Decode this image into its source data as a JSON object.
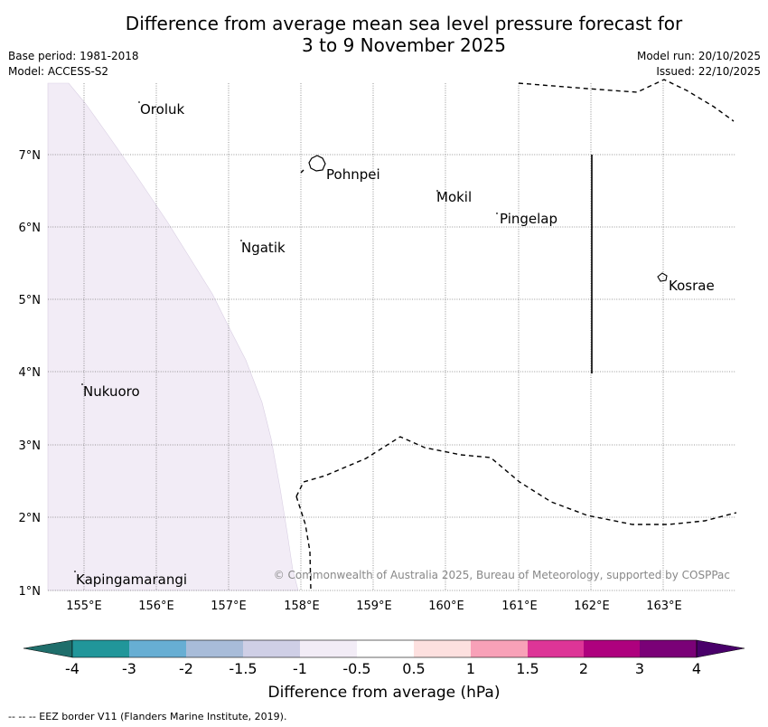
{
  "title_line1": "Difference from average mean sea level pressure forecast for",
  "title_line2": "3 to 9 November 2025",
  "base_period": "Base period: 1981-2018",
  "model": "Model: ACCESS-S2",
  "model_run": "Model run: 20/10/2025",
  "issued": "Issued: 22/10/2025",
  "copyright": "© Commonwealth of Australia 2025, Bureau of Meteorology, supported by COSPPac",
  "colorbar_label": "Difference from average (hPa)",
  "footer": "--  --  -- EEZ border V11 (Flanders Marine Institute, 2019).",
  "colors": {
    "lt_m4": "#1f6e6b",
    "m4_m3": "#21969a",
    "m3_m2": "#67aed3",
    "m2_m15": "#a8bcd9",
    "m15_m1": "#cfcfe6",
    "m1_m05": "#f2ecf6",
    "m05_05": "#ffffff",
    "p05_1": "#fde0df",
    "p1_15": "#f8a1b8",
    "p15_2": "#dd3597",
    "p2_3": "#ae017e",
    "p3_4": "#7a0177",
    "gt_4": "#49006a"
  },
  "colorbar_ticks": [
    "-4",
    "-3",
    "-2",
    "-1.5",
    "-1",
    "-0.5",
    "0.5",
    "1",
    "1.5",
    "2",
    "3",
    "4"
  ],
  "lon_labels": [
    "155°E",
    "156°E",
    "157°E",
    "158°E",
    "159°E",
    "160°E",
    "161°E",
    "162°E",
    "163°E"
  ],
  "lat_labels": [
    "7°N",
    "6°N",
    "5°N",
    "4°N",
    "3°N",
    "2°N",
    "1°N"
  ],
  "places": {
    "oroluk": "Oroluk",
    "pohnpei": "Pohnpei",
    "mokil": "Mokil",
    "pingelap": "Pingelap",
    "ngatik": "Ngatik",
    "kosrae": "Kosrae",
    "nukuoro": "Nukuoro",
    "kapingamarangi": "Kapingamarangi"
  }
}
